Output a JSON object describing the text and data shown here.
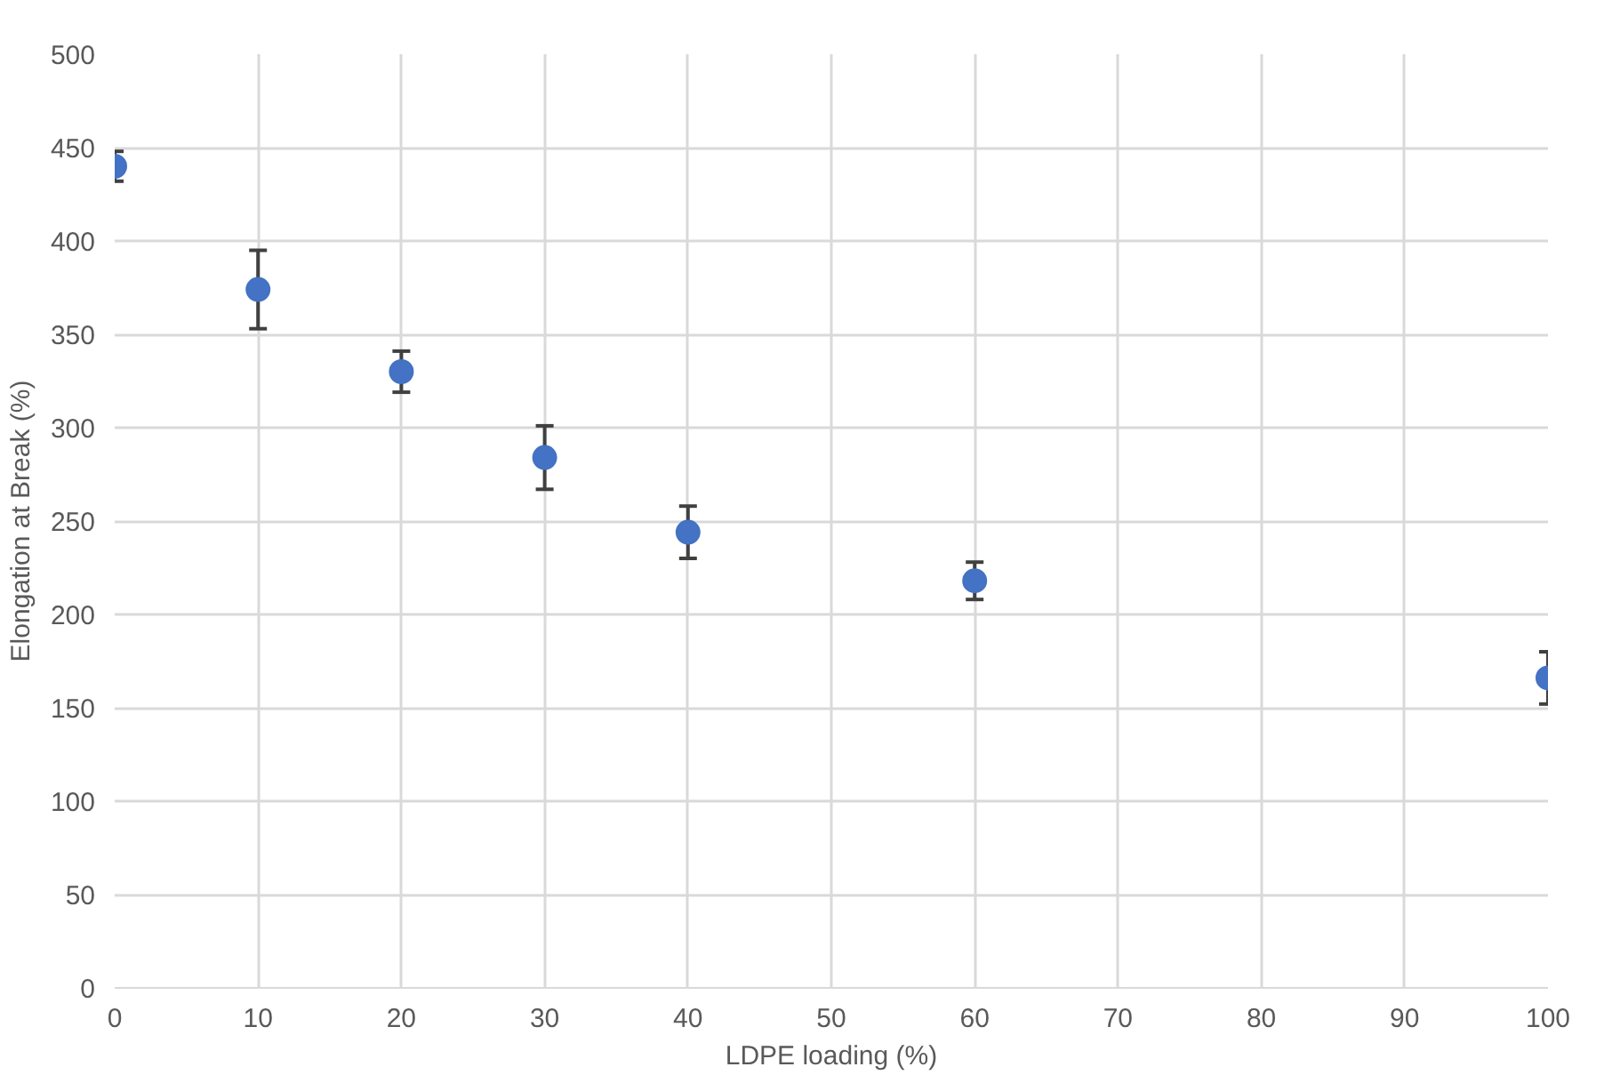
{
  "chart_data": {
    "type": "scatter",
    "xlabel": "LDPE loading (%)",
    "ylabel": "Elongation at Break (%)",
    "x": [
      0,
      10,
      20,
      30,
      40,
      60,
      100
    ],
    "series": [
      {
        "color": "#4472c4",
        "values": [
          440,
          374,
          330,
          284,
          244,
          218,
          166
        ],
        "errors": [
          8,
          21,
          11,
          17,
          14,
          10,
          14
        ]
      }
    ],
    "xlim": [
      0,
      100
    ],
    "xticks": [
      0,
      10,
      20,
      30,
      40,
      50,
      60,
      70,
      80,
      90,
      100
    ],
    "ylim": [
      0,
      500
    ],
    "yticks": [
      0,
      50,
      100,
      150,
      200,
      250,
      300,
      350,
      400,
      450,
      500
    ],
    "grid": true,
    "marker": "circle"
  }
}
